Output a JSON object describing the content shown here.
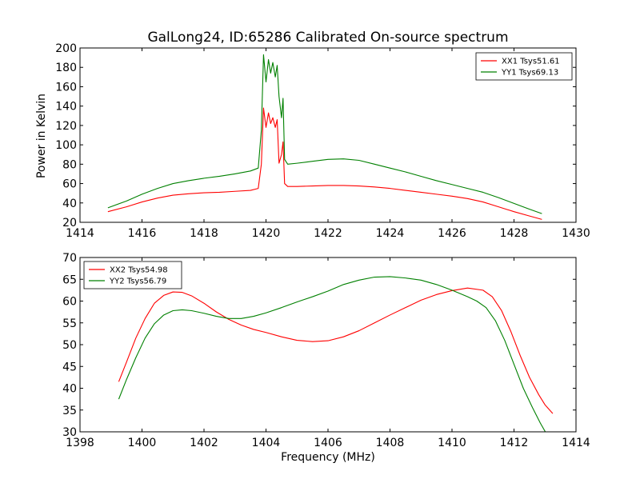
{
  "chart_data": [
    {
      "type": "line",
      "title": "GalLong24, ID:65286 Calibrated On-source spectrum",
      "xlabel": "",
      "ylabel": "Power in Kelvin",
      "xlim": [
        1414,
        1430
      ],
      "ylim": [
        20,
        200
      ],
      "xticks": [
        1414,
        1416,
        1418,
        1420,
        1422,
        1424,
        1426,
        1428,
        1430
      ],
      "yticks": [
        20,
        40,
        60,
        80,
        100,
        120,
        140,
        160,
        180,
        200
      ],
      "legend_position": "top-right",
      "grid": false,
      "series": [
        {
          "name": "XX1 Tsys51.61",
          "color": "#ff0000",
          "x": [
            1414.9,
            1415.5,
            1416.0,
            1416.5,
            1417.0,
            1417.5,
            1418.0,
            1418.5,
            1419.0,
            1419.5,
            1419.75,
            1419.85,
            1419.92,
            1420.0,
            1420.08,
            1420.15,
            1420.22,
            1420.3,
            1420.36,
            1420.42,
            1420.5,
            1420.55,
            1420.6,
            1420.7,
            1421.0,
            1421.5,
            1422.0,
            1422.5,
            1423.0,
            1423.5,
            1424.0,
            1424.5,
            1425.0,
            1425.5,
            1426.0,
            1426.5,
            1427.0,
            1427.5,
            1428.0,
            1428.5,
            1428.9
          ],
          "y": [
            31,
            36,
            41,
            45,
            48,
            49.5,
            50.5,
            51,
            52,
            53,
            55,
            80,
            138,
            118,
            133,
            122,
            128,
            118,
            126,
            81,
            90,
            103,
            60,
            57,
            57,
            57.5,
            58,
            58,
            57.5,
            56.5,
            55,
            53,
            51,
            49,
            47,
            44.5,
            41,
            36,
            31,
            26.5,
            23
          ]
        },
        {
          "name": "YY1 Tsys69.13",
          "color": "#008000",
          "x": [
            1414.9,
            1415.5,
            1416.0,
            1416.5,
            1417.0,
            1417.5,
            1418.0,
            1418.5,
            1419.0,
            1419.5,
            1419.75,
            1419.85,
            1419.92,
            1420.0,
            1420.08,
            1420.15,
            1420.22,
            1420.3,
            1420.36,
            1420.42,
            1420.5,
            1420.55,
            1420.6,
            1420.7,
            1421.0,
            1421.5,
            1422.0,
            1422.5,
            1423.0,
            1423.5,
            1424.0,
            1424.5,
            1425.0,
            1425.5,
            1426.0,
            1426.5,
            1427.0,
            1427.5,
            1428.0,
            1428.5,
            1428.9
          ],
          "y": [
            35,
            42,
            49,
            55,
            60,
            63,
            65.5,
            67.5,
            70,
            73,
            76,
            115,
            193,
            165,
            188,
            174,
            185,
            170,
            182,
            150,
            128,
            148,
            85,
            80,
            81,
            83,
            85,
            85.5,
            84,
            80,
            76,
            72,
            67.5,
            63,
            59,
            55,
            51,
            45.5,
            39.5,
            33.5,
            29
          ]
        }
      ]
    },
    {
      "type": "line",
      "title": "",
      "xlabel": "Frequency (MHz)",
      "ylabel": "",
      "xlim": [
        1398,
        1414
      ],
      "ylim": [
        30,
        70
      ],
      "xticks": [
        1398,
        1400,
        1402,
        1404,
        1406,
        1408,
        1410,
        1412,
        1414
      ],
      "yticks": [
        30,
        35,
        40,
        45,
        50,
        55,
        60,
        65,
        70
      ],
      "legend_position": "top-left",
      "grid": false,
      "series": [
        {
          "name": "XX2 Tsys54.98",
          "color": "#ff0000",
          "x": [
            1399.25,
            1399.5,
            1399.8,
            1400.1,
            1400.4,
            1400.7,
            1401.0,
            1401.3,
            1401.6,
            1402.0,
            1402.4,
            1402.8,
            1403.2,
            1403.6,
            1404.0,
            1404.5,
            1405.0,
            1405.5,
            1406.0,
            1406.5,
            1407.0,
            1407.5,
            1408.0,
            1408.5,
            1409.0,
            1409.5,
            1410.0,
            1410.5,
            1411.0,
            1411.3,
            1411.6,
            1411.9,
            1412.2,
            1412.5,
            1412.8,
            1413.0,
            1413.25
          ],
          "y": [
            41.5,
            46,
            51.5,
            56,
            59.5,
            61.3,
            62.1,
            62,
            61.2,
            59.5,
            57.5,
            55.8,
            54.5,
            53.5,
            52.8,
            51.8,
            51,
            50.7,
            50.9,
            51.8,
            53.2,
            55,
            56.8,
            58.5,
            60.2,
            61.5,
            62.4,
            63,
            62.5,
            61,
            57.8,
            53,
            47.5,
            42.5,
            38.5,
            36.2,
            34.2
          ]
        },
        {
          "name": "YY2 Tsys56.79",
          "color": "#008000",
          "x": [
            1399.25,
            1399.5,
            1399.8,
            1400.1,
            1400.4,
            1400.7,
            1401.0,
            1401.3,
            1401.6,
            1402.0,
            1402.4,
            1402.8,
            1403.2,
            1403.6,
            1404.0,
            1404.5,
            1405.0,
            1405.5,
            1406.0,
            1406.5,
            1407.0,
            1407.5,
            1408.0,
            1408.5,
            1409.0,
            1409.5,
            1410.0,
            1410.5,
            1410.8,
            1411.1,
            1411.4,
            1411.7,
            1412.0,
            1412.3,
            1412.6,
            1412.85,
            1413.05
          ],
          "y": [
            37.5,
            42,
            47,
            51.5,
            54.8,
            56.8,
            57.8,
            58,
            57.8,
            57.2,
            56.5,
            56,
            56,
            56.5,
            57.3,
            58.5,
            59.8,
            61,
            62.3,
            63.8,
            64.8,
            65.5,
            65.6,
            65.3,
            64.8,
            63.8,
            62.5,
            61,
            60,
            58.5,
            55.5,
            51,
            45.5,
            40,
            35.5,
            32,
            29.5
          ]
        }
      ]
    }
  ]
}
